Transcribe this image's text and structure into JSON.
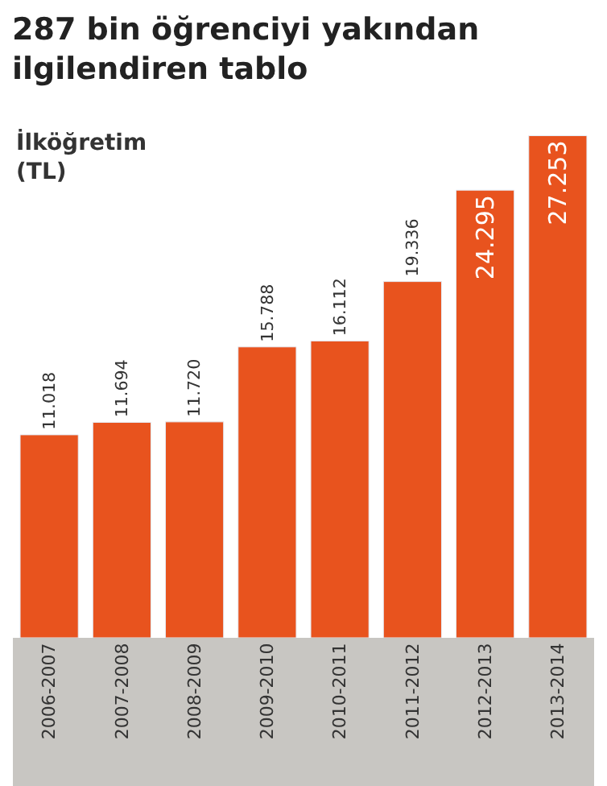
{
  "chart_data": {
    "type": "bar",
    "title": "287 bin öğrenciyi yakından ilgilendiren tablo",
    "ylabel": "İlköğretim (TL)",
    "categories": [
      "2006-2007",
      "2007-2008",
      "2008-2009",
      "2009-2010",
      "2010-2011",
      "2011-2012",
      "2012-2013",
      "2013-2014"
    ],
    "values": [
      11018,
      11694,
      11720,
      15788,
      16112,
      19336,
      24295,
      27253
    ],
    "value_labels": [
      "11.018",
      "11.694",
      "11.720",
      "15.788",
      "16.112",
      "19.336",
      "24.295",
      "27.253"
    ],
    "color": "#e8531e"
  }
}
